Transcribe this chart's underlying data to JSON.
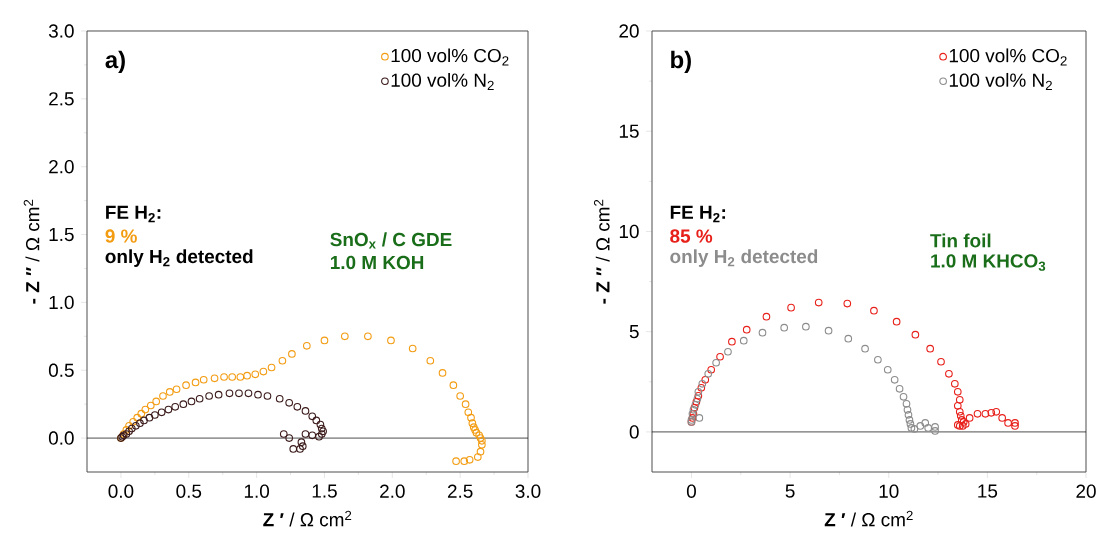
{
  "chart_data": [
    {
      "type": "scatter",
      "xlabel": "**Z ′** / Ω cm$^{2}$",
      "ylabel": "**- Z ′′** / Ω cm$^{2}$",
      "annotations": [
        "a)",
        "FE H$_{2}$:",
        "9 %",
        "only H$_{2}$ detected",
        "SnO$_{x}$ / C GDE",
        "1.0 M KOH"
      ],
      "xlim": [
        -0.25,
        3.0
      ],
      "ylim": [
        -0.25,
        3.0
      ],
      "xticks": [
        {
          "value": 0,
          "label": "0.0"
        },
        {
          "value": 0.5,
          "label": "0.5"
        },
        {
          "value": 1,
          "label": "1.0"
        },
        {
          "value": 1.5,
          "label": "1.5"
        },
        {
          "value": 2,
          "label": "2.0"
        },
        {
          "value": 2.5,
          "label": "2.5"
        },
        {
          "value": 3,
          "label": "3.0"
        }
      ],
      "yticks": [
        {
          "value": 0,
          "label": "0.0"
        },
        {
          "value": 0.5,
          "label": "0.5"
        },
        {
          "value": 1,
          "label": "1.0"
        },
        {
          "value": 1.5,
          "label": "1.5"
        },
        {
          "value": 2,
          "label": "2.0"
        },
        {
          "value": 2.5,
          "label": "2.5"
        },
        {
          "value": 3,
          "label": "3.0"
        }
      ],
      "ref_lines": [
        {
          "axis": "y",
          "value": 0,
          "color": "#000000"
        }
      ],
      "legend": "top right",
      "marker": "circle",
      "grid": false,
      "series": [
        {
          "name": "100 vol% CO$_{2}$",
          "color": "#f39c12",
          "x": [
            0,
            0.02,
            0.04,
            0.06,
            0.09,
            0.12,
            0.15,
            0.18,
            0.22,
            0.26,
            0.31,
            0.36,
            0.41,
            0.48,
            0.55,
            0.61,
            0.69,
            0.76,
            0.82,
            0.88,
            0.93,
            0.99,
            1.05,
            1.11,
            1.19,
            1.26,
            1.37,
            1.5,
            1.65,
            1.82,
            1.99,
            2.15,
            2.28,
            2.37,
            2.45,
            2.5,
            2.54,
            2.56,
            2.58,
            2.59,
            2.6,
            2.61,
            2.62,
            2.64,
            2.65,
            2.66,
            2.66,
            2.65,
            2.63,
            2.57,
            2.53,
            2.47
          ],
          "values": [
            0,
            0.03,
            0.06,
            0.09,
            0.12,
            0.15,
            0.18,
            0.21,
            0.24,
            0.27,
            0.31,
            0.34,
            0.36,
            0.39,
            0.41,
            0.43,
            0.44,
            0.45,
            0.45,
            0.45,
            0.46,
            0.47,
            0.49,
            0.52,
            0.57,
            0.62,
            0.68,
            0.72,
            0.75,
            0.75,
            0.72,
            0.66,
            0.57,
            0.48,
            0.39,
            0.31,
            0.25,
            0.19,
            0.15,
            0.11,
            0.08,
            0.06,
            0.04,
            0.02,
            0,
            -0.02,
            -0.05,
            -0.1,
            -0.14,
            -0.16,
            -0.17,
            -0.17
          ]
        },
        {
          "name": "100 vol% N$_{2}$",
          "color": "#3b1a1a",
          "x": [
            0,
            0.01,
            0.02,
            0.04,
            0.06,
            0.08,
            0.11,
            0.14,
            0.17,
            0.21,
            0.25,
            0.3,
            0.35,
            0.4,
            0.46,
            0.52,
            0.58,
            0.65,
            0.72,
            0.8,
            0.87,
            0.94,
            1.01,
            1.08,
            1.17,
            1.24,
            1.3,
            1.36,
            1.41,
            1.44,
            1.47,
            1.48,
            1.49,
            1.48,
            1.46,
            1.41,
            1.36,
            1.33,
            1.32,
            1.34,
            1.27,
            1.24,
            1.2
          ],
          "values": [
            0,
            0.01,
            0.02,
            0.03,
            0.05,
            0.07,
            0.09,
            0.11,
            0.13,
            0.15,
            0.17,
            0.19,
            0.21,
            0.23,
            0.25,
            0.27,
            0.29,
            0.31,
            0.32,
            0.33,
            0.33,
            0.33,
            0.32,
            0.31,
            0.29,
            0.26,
            0.23,
            0.2,
            0.16,
            0.13,
            0.1,
            0.07,
            0.05,
            0.03,
            0.01,
            0.02,
            0.03,
            -0.03,
            -0.08,
            -0.06,
            -0.08,
            0,
            0.03
          ]
        }
      ]
    },
    {
      "type": "scatter",
      "xlabel": "**Z ′** / Ω cm$^{2}$",
      "ylabel": "**- Z ′′** / Ω cm$^{2}$",
      "annotations": [
        "b)",
        "FE H$_{2}$:",
        "85 %",
        "only H$_{2}$ detected",
        "Tin foil",
        "1.0 M KHCO$_{3}$"
      ],
      "xlim": [
        -2,
        20
      ],
      "ylim": [
        -2,
        20
      ],
      "xticks": [
        0,
        5,
        10,
        15,
        20
      ],
      "yticks": [
        0,
        5,
        10,
        15,
        20
      ],
      "ref_lines": [
        {
          "axis": "y",
          "value": 0,
          "color": "#000000"
        }
      ],
      "legend": "top right",
      "marker": "circle",
      "grid": false,
      "series": [
        {
          "name": "100 vol% CO$_{2}$",
          "color": "#e8201a",
          "x": [
            0,
            0.05,
            0.1,
            0.15,
            0.25,
            0.35,
            0.5,
            0.7,
            1,
            1.45,
            2.05,
            2.8,
            3.8,
            5.05,
            6.45,
            7.9,
            9.25,
            10.4,
            11.35,
            12.1,
            12.65,
            13.05,
            13.35,
            13.5,
            13.6,
            13.5,
            13.6,
            13.65,
            13.7,
            13.8,
            13.9,
            13.75,
            13.6,
            13.5,
            14.1,
            14.5,
            14.9,
            15.2,
            15.45,
            15.75,
            16.05,
            16.4,
            16.4
          ],
          "values": [
            0.5,
            0.7,
            0.9,
            1.2,
            1.5,
            1.8,
            2.2,
            2.6,
            3.1,
            3.75,
            4.5,
            5.1,
            5.75,
            6.2,
            6.45,
            6.4,
            6.05,
            5.5,
            4.85,
            4.15,
            3.5,
            2.9,
            2.4,
            2,
            1.6,
            1.3,
            1,
            0.8,
            0.6,
            0.5,
            0.4,
            0.3,
            0.3,
            0.35,
            0.7,
            0.9,
            0.9,
            0.95,
            1,
            0.7,
            0.45,
            0.45,
            0.3
          ]
        },
        {
          "name": "100 vol% N$_{2}$",
          "color": "#8c8c8c",
          "x": [
            0,
            0.05,
            0.1,
            0.2,
            0.3,
            0.35,
            0.55,
            0.85,
            1.25,
            1.85,
            2.65,
            3.6,
            4.7,
            5.8,
            6.95,
            7.95,
            8.8,
            9.45,
            9.95,
            10.3,
            10.55,
            10.75,
            10.9,
            10.95,
            11,
            11.05,
            11.1,
            11.15,
            11.3,
            11.6,
            11.85,
            12,
            12.35,
            12.35,
            0.4,
            0
          ],
          "values": [
            0.6,
            0.9,
            1.1,
            1.35,
            1.65,
            2,
            2.4,
            2.9,
            3.45,
            4,
            4.55,
            4.95,
            5.2,
            5.25,
            5.05,
            4.65,
            4.15,
            3.6,
            3.1,
            2.6,
            2.15,
            1.75,
            1.4,
            1.1,
            0.85,
            0.6,
            0.4,
            0.2,
            0.15,
            0.3,
            0.45,
            0.2,
            0.25,
            0.05,
            0.7,
            0.5
          ]
        }
      ]
    }
  ]
}
